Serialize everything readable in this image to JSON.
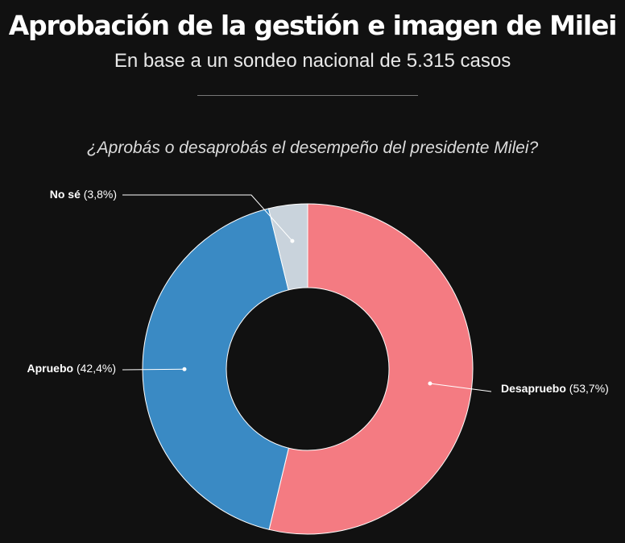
{
  "header": {
    "title": "Aprobación de la gestión e imagen de Milei",
    "subtitle": "En base a un sondeo nacional de 5.315 casos"
  },
  "chart_data": {
    "type": "pie",
    "variant": "donut",
    "title": "¿Aprobás o desaprobás el desempeño del presidente Milei?",
    "slices": [
      {
        "label": "Desapruebo",
        "value": 53.7,
        "display": "(53,7%)",
        "color": "#f47b82"
      },
      {
        "label": "Apruebo",
        "value": 42.4,
        "display": "(42,4%)",
        "color": "#3a8ac4"
      },
      {
        "label": "No sé",
        "value": 3.8,
        "display": "(3,8%)",
        "color": "#c9d3dc"
      }
    ]
  }
}
